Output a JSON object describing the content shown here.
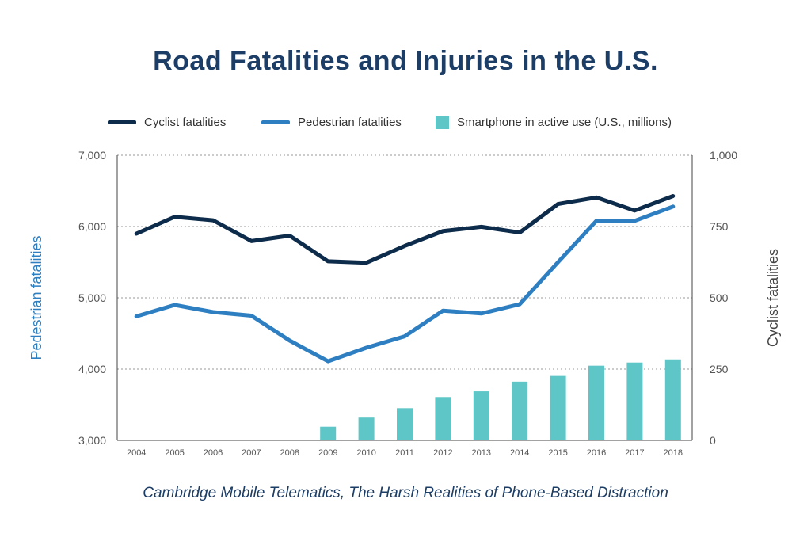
{
  "chart_data": {
    "type": "bar+line",
    "title": "Road Fatalities and Injuries in the U.S.",
    "source": "Cambridge Mobile Telematics, The Harsh Realities of Phone-Based Distraction",
    "categories": [
      "2004",
      "2005",
      "2006",
      "2007",
      "2008",
      "2009",
      "2010",
      "2011",
      "2012",
      "2013",
      "2014",
      "2015",
      "2016",
      "2017",
      "2018"
    ],
    "ylabel_left": "Pedestrian fatalities",
    "ylabel_right": "Cyclist fatalities",
    "ylim_left": [
      3000,
      7000
    ],
    "ylim_right": [
      0,
      1000
    ],
    "yticks_left": [
      "3,000",
      "4,000",
      "5,000",
      "6,000",
      "7,000"
    ],
    "yticks_right": [
      "0",
      "250",
      "500",
      "750",
      "1,000"
    ],
    "grid": true,
    "legend_position": "top",
    "series": [
      {
        "name": "Cyclist fatalities",
        "type": "line",
        "axis": "right",
        "color": "#0d2b4a",
        "values": [
          725,
          784,
          772,
          699,
          718,
          628,
          623,
          682,
          734,
          749,
          729,
          829,
          852,
          806,
          857
        ]
      },
      {
        "name": "Pedestrian fatalities",
        "type": "line",
        "axis": "left",
        "color": "#2e7fc1",
        "values": [
          4740,
          4900,
          4800,
          4750,
          4400,
          4110,
          4300,
          4460,
          4820,
          4780,
          4910,
          5500,
          6080,
          6080,
          6280
        ]
      },
      {
        "name": "Smartphone in active use (U.S., millions)",
        "type": "bar",
        "axis": "right",
        "color": "#5ec6c6",
        "values": [
          null,
          null,
          null,
          null,
          null,
          48,
          80,
          113,
          152,
          172,
          206,
          226,
          262,
          273,
          284
        ]
      }
    ]
  }
}
